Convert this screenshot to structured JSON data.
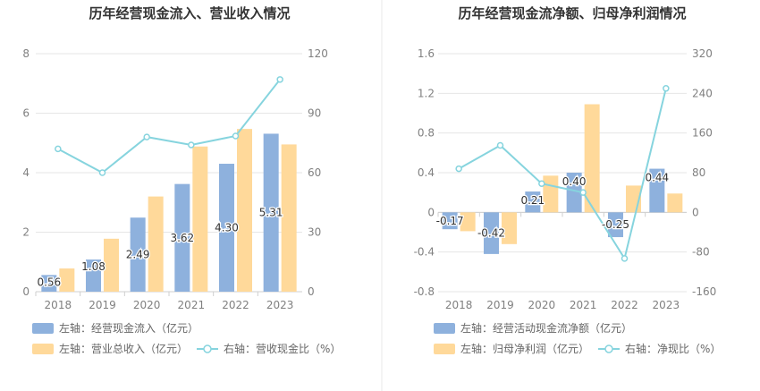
{
  "colors": {
    "bar_blue": "#8eb1dd",
    "bar_orange": "#ffd99a",
    "line_teal": "#86d4de",
    "grid": "#e6e6e6",
    "axis_text": "#808080",
    "title": "#333333",
    "divider": "#e8e8e8"
  },
  "chart_data": [
    {
      "type": "bar",
      "title": "历年经营现金流入、营业收入情况",
      "categories": [
        "2018",
        "2019",
        "2020",
        "2021",
        "2022",
        "2023"
      ],
      "series": [
        {
          "name": "左轴：经营现金流入（亿元）",
          "axis": "left",
          "kind": "bar",
          "color": "#8eb1dd",
          "values": [
            0.56,
            1.08,
            2.49,
            3.62,
            4.3,
            5.31
          ],
          "data_labels": [
            "0.56",
            "1.08",
            "2.49",
            "3.62",
            "4.30",
            "5.31"
          ]
        },
        {
          "name": "左轴：营业总收入（亿元）",
          "axis": "left",
          "kind": "bar",
          "color": "#ffd99a",
          "values": [
            0.78,
            1.78,
            3.2,
            4.88,
            5.47,
            4.95
          ]
        },
        {
          "name": "右轴：营收现金比（%）",
          "axis": "right",
          "kind": "line",
          "color": "#86d4de",
          "values": [
            72,
            60,
            78,
            74,
            78.5,
            107
          ]
        }
      ],
      "left_axis": {
        "ylim": [
          0,
          8
        ],
        "ticks": [
          "0",
          "2",
          "4",
          "6",
          "8"
        ]
      },
      "right_axis": {
        "ylim": [
          0,
          120
        ],
        "ticks": [
          "0",
          "30",
          "60",
          "90",
          "120"
        ]
      },
      "grid": true,
      "legend_position": "bottom-left"
    },
    {
      "type": "bar",
      "title": "历年经营现金流净额、归母净利润情况",
      "categories": [
        "2018",
        "2019",
        "2020",
        "2021",
        "2022",
        "2023"
      ],
      "series": [
        {
          "name": "左轴：经营活动现金流净额（亿元）",
          "axis": "left",
          "kind": "bar",
          "color": "#8eb1dd",
          "values": [
            -0.17,
            -0.42,
            0.21,
            0.4,
            -0.25,
            0.44
          ],
          "data_labels": [
            "-0.17",
            "-0.42",
            "0.21",
            "0.40",
            "-0.25",
            "0.44"
          ]
        },
        {
          "name": "左轴：归母净利润（亿元）",
          "axis": "left",
          "kind": "bar",
          "color": "#ffd99a",
          "values": [
            -0.19,
            -0.32,
            0.37,
            1.09,
            0.27,
            0.19
          ]
        },
        {
          "name": "右轴：净现比（%）",
          "axis": "right",
          "kind": "line",
          "color": "#86d4de",
          "values": [
            88,
            135,
            58,
            40,
            -93,
            250
          ]
        }
      ],
      "left_axis": {
        "ylim": [
          -0.8,
          1.6
        ],
        "ticks": [
          "-0.8",
          "-0.4",
          "0",
          "0.4",
          "0.8",
          "1.2",
          "1.6"
        ]
      },
      "right_axis": {
        "ylim": [
          -160,
          320
        ],
        "ticks": [
          "-160",
          "-80",
          "0",
          "80",
          "160",
          "240",
          "320"
        ]
      },
      "grid": true,
      "legend_position": "bottom-left"
    }
  ]
}
